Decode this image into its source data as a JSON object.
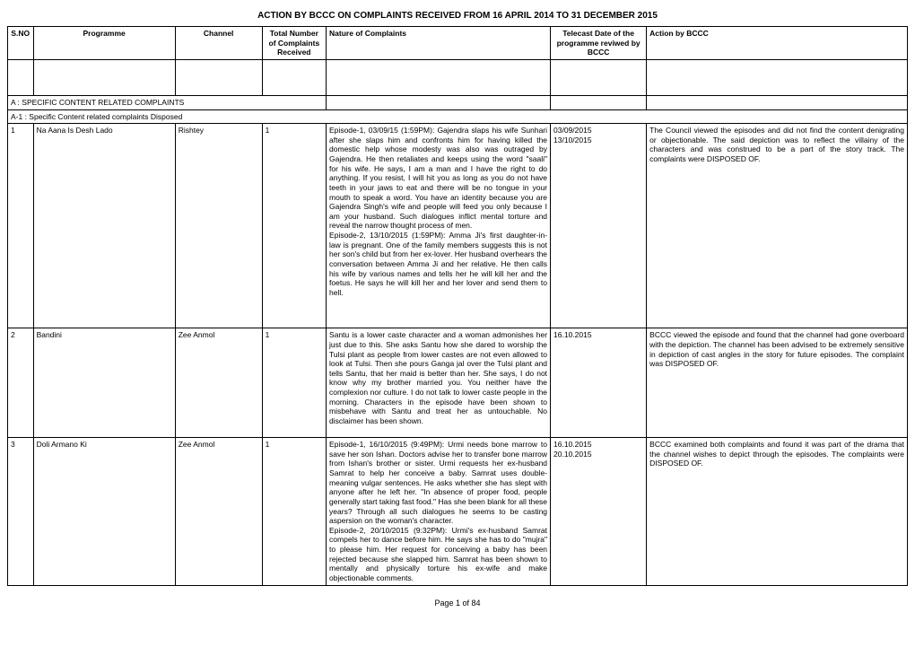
{
  "title": "ACTION BY BCCC ON COMPLAINTS RECEIVED FROM 16 APRIL 2014 TO 31 DECEMBER 2015",
  "headers": {
    "sno": "S.NO",
    "programme": "Programme",
    "channel": "Channel",
    "total": "Total Number of Complaints Received",
    "nature": "Nature of Complaints",
    "date": "Telecast  Date of the programme reviwed by BCCC",
    "action": "Action by BCCC"
  },
  "sectionA": "A : SPECIFIC CONTENT RELATED COMPLAINTS",
  "sectionA1": "A-1 : Specific Content related complaints Disposed",
  "rows": [
    {
      "sno": "1",
      "programme": "Na Aana Is Desh Lado",
      "channel": "Rishtey",
      "total": "1",
      "nature": "Episode-1, 03/09/15 (1:59PM): Gajendra slaps his wife Sunhari after she slaps him and confronts him for having killed the domestic help whose modesty was also was outraged by Gajendra. He then retaliates and keeps using the word \"saali\" for his wife. He says, I am a man and I have the right to do anything. If you resist, I will hit you as long as you do not have teeth in your jaws to eat and there will be no tongue in your mouth to speak a word. You have an identity because you are Gajendra Singh's wife and people will feed you only because I am your husband. Such dialogues inflict mental torture and reveal the narrow thought process of men.\nEpisode-2, 13/10/2015 (1:59PM): Amma Ji's first daughter-in-law is pregnant. One of the family members suggests this is not her son's child but from her ex-lover. Her husband overhears the conversation between Amma Ji and her relative. He then calls his wife by various names and tells her he will kill her and the foetus. He says he will kill her and her lover and send them to hell.\n\n\n",
      "date": "03/09/2015\n13/10/2015",
      "action": "The Council viewed the episodes and did not find the content denigrating or objectionable. The said depiction was to reflect the villainy of the characters and was construed to be a part of the story track. The complaints were DISPOSED OF."
    },
    {
      "sno": "2",
      "programme": "Bandini",
      "channel": "Zee Anmol",
      "total": "1",
      "nature": "Santu is a lower caste character and a woman admonishes her just due to this. She asks Santu how she dared to worship the Tulsi plant as people from lower castes are not even allowed to look at Tulsi. Then she pours Ganga jal over the Tulsi plant and tells Santu, that her maid is better than her. She says, I do not know why my brother married you. You neither have the complexion nor culture. I do not talk to lower caste people in the morning. Characters in the episode have been shown to misbehave with Santu and treat her as untouchable. No disclaimer has been shown.\n",
      "date": "16.10.2015",
      "action": "BCCC viewed the episode and found that the channel had gone overboard with the depiction. The channel has been advised to be extremely sensitive in depiction of cast angles in the story for future episodes. The complaint was DISPOSED OF."
    },
    {
      "sno": "3",
      "programme": "Doli Armano Ki",
      "channel": "Zee Anmol",
      "total": "1",
      "nature": "Episode-1, 16/10/2015 (9:49PM):  Urmi needs bone marrow to save her son Ishan. Doctors advise her to transfer bone marrow from Ishan's brother or sister. Urmi requests her ex-husband Samrat to help her conceive a baby. Samrat uses double-meaning vulgar sentences. He asks whether she has slept with anyone after he left her. \"In absence of proper food, people generally start taking fast food.\" Has she been blank for all these years? Through all such dialogues he seems to be casting aspersion on the woman's character.\nEpisode-2, 20/10/2015 (9:32PM): Urmi's ex-husband Samrat compels her to dance before him. He says she has to do \"mujra\" to please him. Her request for conceiving a baby has been rejected because she slapped him.  Samrat has been shown to mentally and physically torture his ex-wife and make objectionable comments.",
      "date": "16.10.2015\n20.10.2015",
      "action": "BCCC examined both complaints and found it was part of the drama that the channel wishes to depict through the episodes. The complaints were DISPOSED OF."
    }
  ],
  "footer": "Page 1 of 84"
}
